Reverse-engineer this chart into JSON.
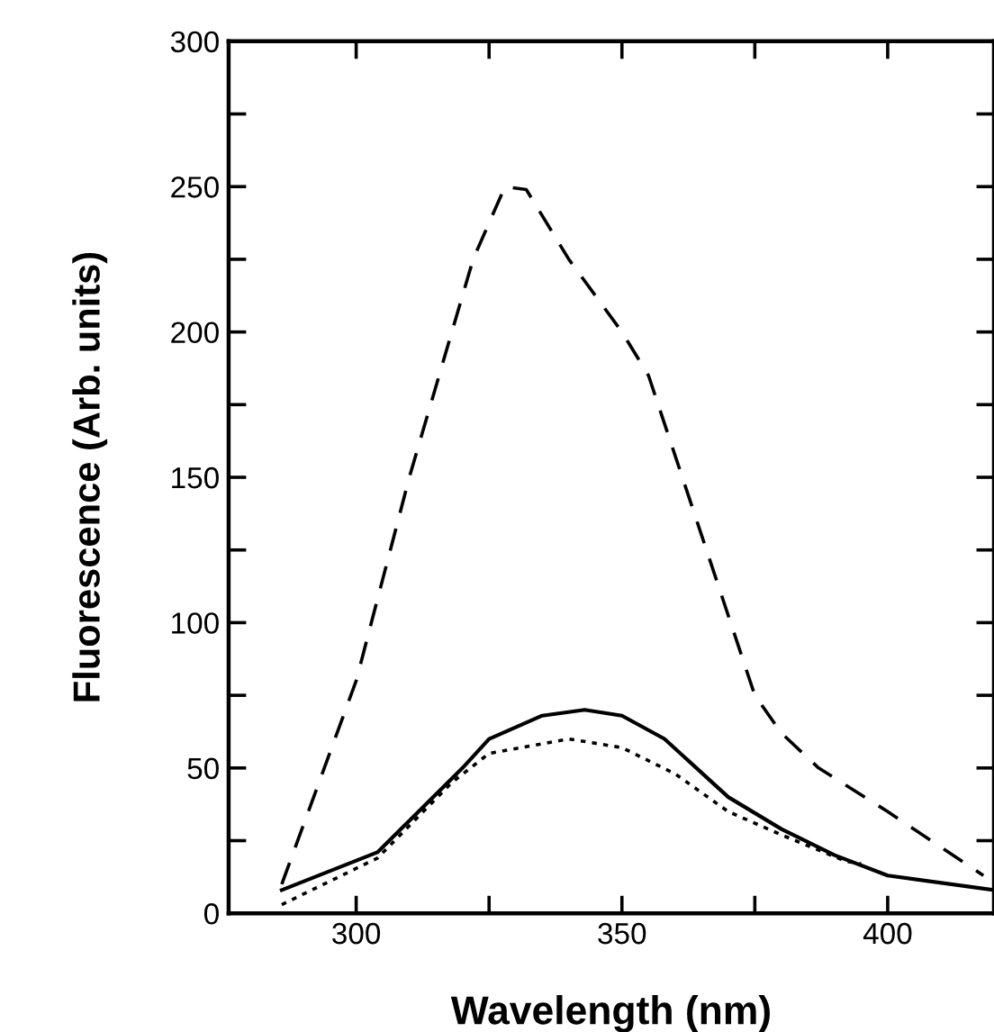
{
  "chart_data": {
    "type": "line",
    "xlabel": "Wavelength (nm)",
    "ylabel": "Fluorescence (Arb. units)",
    "xlim": [
      276,
      420
    ],
    "ylim": [
      0,
      300
    ],
    "xticks": [
      300,
      {
        "value": 325,
        "label": null
      },
      350,
      {
        "value": 375,
        "label": null
      },
      400
    ],
    "yticks": [
      0,
      {
        "value": 25,
        "label": null
      },
      50,
      {
        "value": 75,
        "label": null
      },
      100,
      {
        "value": 125,
        "label": null
      },
      150,
      {
        "value": 175,
        "label": null
      },
      200,
      {
        "value": 225,
        "label": null
      },
      250,
      {
        "value": 275,
        "label": null
      },
      300
    ],
    "grid": false,
    "legend": false,
    "series": [
      {
        "color": "#000000",
        "line_style": "dashed",
        "x": [
          286,
          300,
          310,
          318,
          322,
          328,
          332,
          340,
          350,
          355,
          365,
          375,
          380,
          387,
          400,
          418
        ],
        "values": [
          10,
          80,
          150,
          200,
          225,
          250,
          249,
          225,
          200,
          185,
          130,
          75,
          62,
          50,
          35,
          13
        ]
      },
      {
        "color": "#000000",
        "line_style": "solid",
        "x": [
          286,
          304,
          320,
          325,
          335,
          343,
          350,
          358,
          370,
          380,
          390,
          400,
          420
        ],
        "values": [
          8,
          21,
          50,
          60,
          68,
          70,
          68,
          60,
          40,
          29,
          20,
          13,
          8
        ]
      },
      {
        "color": "#000000",
        "line_style": "dotted",
        "x": [
          286,
          304,
          318,
          325,
          340,
          350,
          360,
          370,
          380,
          392,
          395
        ],
        "values": [
          3,
          19,
          45,
          55,
          60,
          57,
          48,
          35,
          27,
          18,
          17
        ]
      }
    ]
  }
}
